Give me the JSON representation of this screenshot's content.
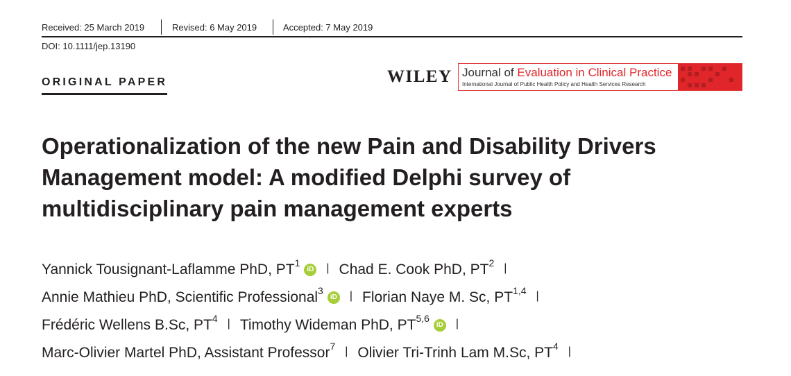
{
  "header": {
    "received": "Received: 25 March 2019",
    "revised": "Revised: 6 May 2019",
    "accepted": "Accepted: 7 May 2019",
    "doi": "DOI: 10.1111/jep.13190"
  },
  "article_type": "ORIGINAL PAPER",
  "publisher": "WILEY",
  "journal": {
    "prefix": "Journal of",
    "name": "Evaluation in Clinical Practice",
    "subtitle": "International Journal of Public Health Policy and Health Services Research"
  },
  "title": [
    "Operationalization of the new Pain and Disability Drivers",
    "Management model: A modified Delphi survey of",
    "multidisciplinary pain management experts"
  ],
  "authors": [
    [
      {
        "name": "Yannick Tousignant-Laflamme PhD, PT",
        "affil": "1",
        "orcid": true
      },
      {
        "name": "Chad E. Cook PhD, PT",
        "affil": "2",
        "orcid": false
      }
    ],
    [
      {
        "name": "Annie Mathieu PhD, Scientific Professional",
        "affil": "3",
        "orcid": true
      },
      {
        "name": "Florian Naye M. Sc, PT",
        "affil": "1,4",
        "orcid": false
      }
    ],
    [
      {
        "name": "Frédéric Wellens B.Sc, PT",
        "affil": "4",
        "orcid": false
      },
      {
        "name": "Timothy Wideman PhD, PT",
        "affil": "5,6",
        "orcid": true
      }
    ],
    [
      {
        "name": "Marc-Olivier Martel PhD, Assistant Professor",
        "affil": "7",
        "orcid": false
      },
      {
        "name": "Olivier Tri-Trinh Lam M.Sc, PT",
        "affil": "4",
        "orcid": false
      }
    ]
  ]
}
